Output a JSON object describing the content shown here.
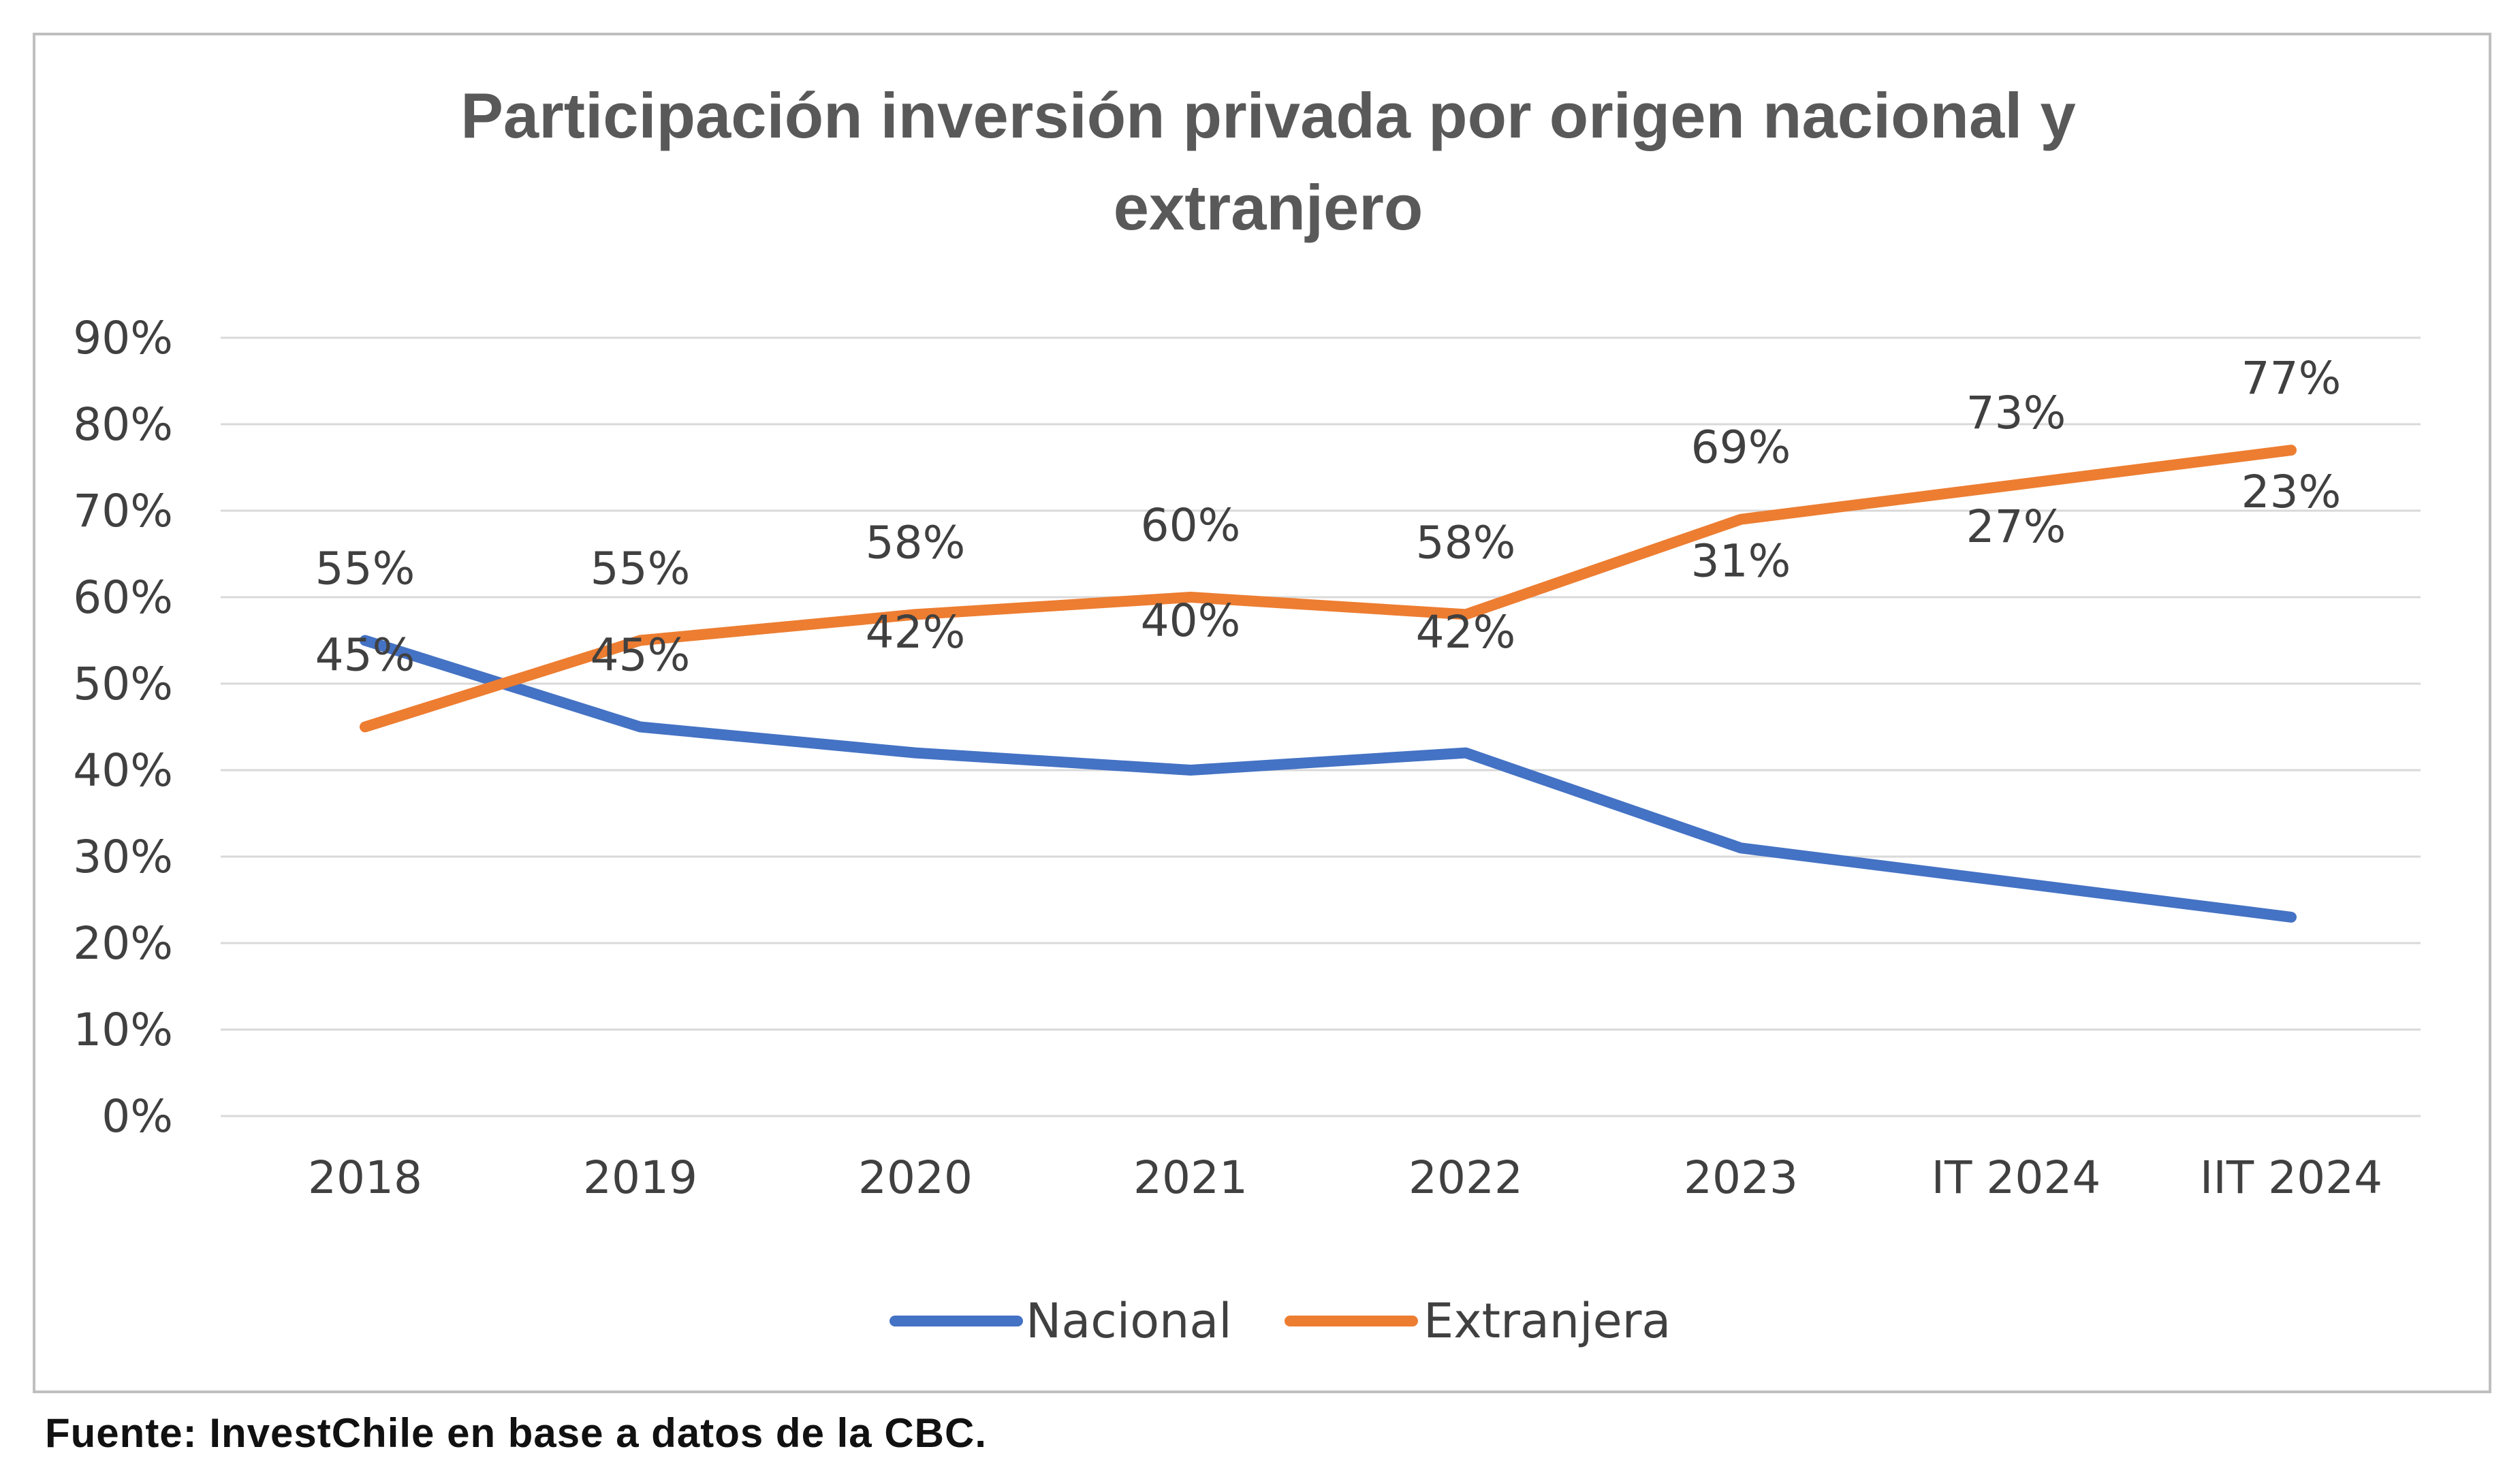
{
  "chart_data": {
    "type": "line",
    "title": "Participación inversión privada por origen nacional y extranjero",
    "title_lines": [
      "Participación inversión privada por origen nacional y",
      "extranjero"
    ],
    "categories": [
      "2018",
      "2019",
      "2020",
      "2021",
      "2022",
      "2023",
      "IT 2024",
      "IIT 2024"
    ],
    "series": [
      {
        "name": "Nacional",
        "color": "#4472C4",
        "values": [
          55,
          45,
          42,
          40,
          42,
          31,
          27,
          23
        ],
        "labels": [
          "55%",
          "45%",
          "42%",
          "40%",
          "42%",
          "31%",
          "27%",
          "23%"
        ]
      },
      {
        "name": "Extranjera",
        "color": "#ED7D31",
        "values": [
          45,
          55,
          58,
          60,
          58,
          69,
          73,
          77
        ],
        "labels": [
          "45%",
          "55%",
          "58%",
          "60%",
          "58%",
          "69%",
          "73%",
          "77%"
        ]
      }
    ],
    "ylim": [
      0,
      90
    ],
    "yticks": [
      "0%",
      "10%",
      "20%",
      "30%",
      "40%",
      "50%",
      "60%",
      "70%",
      "80%",
      "90%"
    ],
    "xlabel": "",
    "ylabel": "",
    "grid": true,
    "legend": "bottom-center"
  },
  "footer": {
    "source": "Fuente: InvestChile en base a datos de la CBC."
  },
  "colors": {
    "grid": "#d9d9d9",
    "text": "#404040",
    "title": "#595959",
    "border": "#bfbfbf"
  }
}
